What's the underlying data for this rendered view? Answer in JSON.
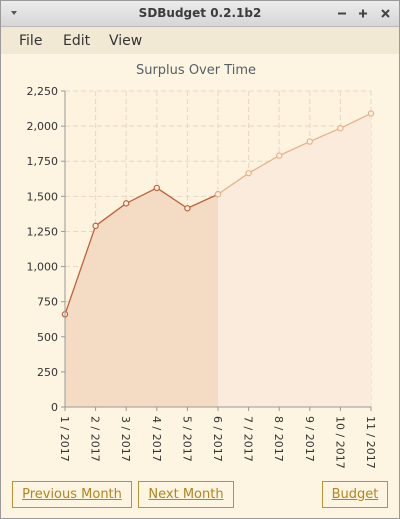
{
  "window": {
    "title": "SDBudget 0.2.1b2"
  },
  "menu": [
    "File",
    "Edit",
    "View"
  ],
  "chart_data": {
    "type": "area",
    "title": "Surplus Over Time",
    "categories": [
      "1 / 2017",
      "2 / 2017",
      "3 / 2017",
      "4 / 2017",
      "5 / 2017",
      "6 / 2017",
      "7 / 2017",
      "8 / 2017",
      "9 / 2017",
      "10 / 2017",
      "11 / 2017"
    ],
    "series": [
      {
        "color": "#c0603c",
        "fill": "#f4dcc4",
        "values": [
          660,
          1290,
          1450,
          1560,
          1415,
          1515,
          null,
          null,
          null,
          null,
          null
        ]
      },
      {
        "color": "#e8b08c",
        "fill": "#fbebdc",
        "values": [
          null,
          null,
          null,
          null,
          null,
          1515,
          1665,
          1790,
          1890,
          1985,
          2090
        ]
      }
    ],
    "ylim": [
      0,
      2250
    ],
    "yticks": [
      0,
      250,
      500,
      750,
      {
        "value": 1000,
        "label": "1,000"
      },
      {
        "value": 1250,
        "label": "1,250"
      },
      {
        "value": 1500,
        "label": "1,500"
      },
      {
        "value": 1750,
        "label": "1,750"
      },
      {
        "value": 2000,
        "label": "2,000"
      },
      {
        "value": 2250,
        "label": "2,250"
      }
    ],
    "grid": true
  },
  "buttons": [
    "Previous Month",
    "Next Month",
    "Budget"
  ]
}
